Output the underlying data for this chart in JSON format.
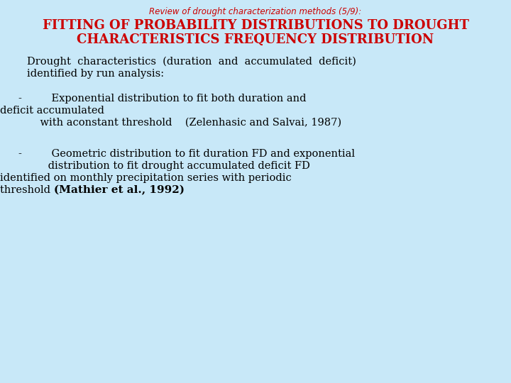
{
  "bg_color": "#c8e8f8",
  "subtitle": "Review of drought characterization methods (5/9):",
  "title_line1": "FITTING OF PROBABILITY DISTRIBUTIONS TO DROUGHT",
  "title_line2": "CHARACTERISTICS FREQUENCY DISTRIBUTION",
  "subtitle_color": "#cc0000",
  "title_color": "#cc0000",
  "subtitle_fontsize": 8.5,
  "title_fontsize": 13,
  "body_color": "#000000",
  "body_fontsize": 10.5,
  "bold_fontsize": 11,
  "para1_line1": "Drought  characteristics  (duration  and  accumulated  deficit)",
  "para1_line2": "identified by run analysis:",
  "bullet1_line1": "-         Exponential distribution to fit both duration and",
  "bullet1_line2": "deficit accumulated",
  "bullet1_line3": "    with aconstant threshold    (Zelenhasic and Salvai, 1987)",
  "bullet2_line1": "-         Geometric distribution to fit duration FD and exponential",
  "bullet2_line2": "         distribution to fit drought accumulated deficit FD",
  "bullet2_line3": "identified on monthly precipitation series with periodic",
  "bullet2_line4_a": "threshold        ",
  "bullet2_line4_b": "(Mathier et al., 1992)"
}
